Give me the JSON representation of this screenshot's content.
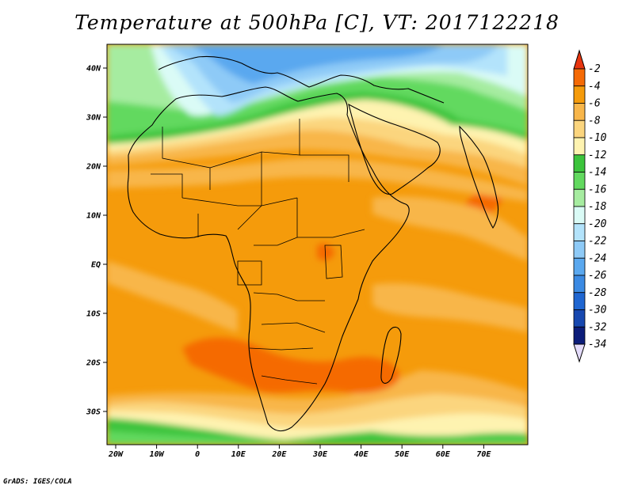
{
  "title": "Temperature at 500hPa [C], VT: 2017122218",
  "credit": "GrADS: IGES/COLA",
  "map": {
    "lon_labels": [
      "20W",
      "10W",
      "0",
      "10E",
      "20E",
      "30E",
      "40E",
      "50E",
      "60E",
      "70E"
    ],
    "lat_labels": [
      "40N",
      "30N",
      "20N",
      "10N",
      "EQ",
      "10S",
      "20S",
      "30S"
    ]
  },
  "colorbar": {
    "labels": [
      "-2",
      "-4",
      "-6",
      "-8",
      "-10",
      "-12",
      "-14",
      "-16",
      "-18",
      "-20",
      "-22",
      "-24",
      "-26",
      "-28",
      "-30",
      "-32",
      "-34"
    ],
    "colors": [
      "#e8350f",
      "#f56a05",
      "#f59b0b",
      "#f8b64a",
      "#fbd57e",
      "#fef3b0",
      "#3cc43c",
      "#62d95f",
      "#a6eca0",
      "#dafbf6",
      "#b3e3fb",
      "#8ecaf7",
      "#5aa8ef",
      "#3b8ae3",
      "#1f66d1",
      "#1748b0",
      "#0c1d7a"
    ],
    "top_arrow_color": "#e8350f",
    "bottom_arrow_color": "#e4dcfb"
  }
}
